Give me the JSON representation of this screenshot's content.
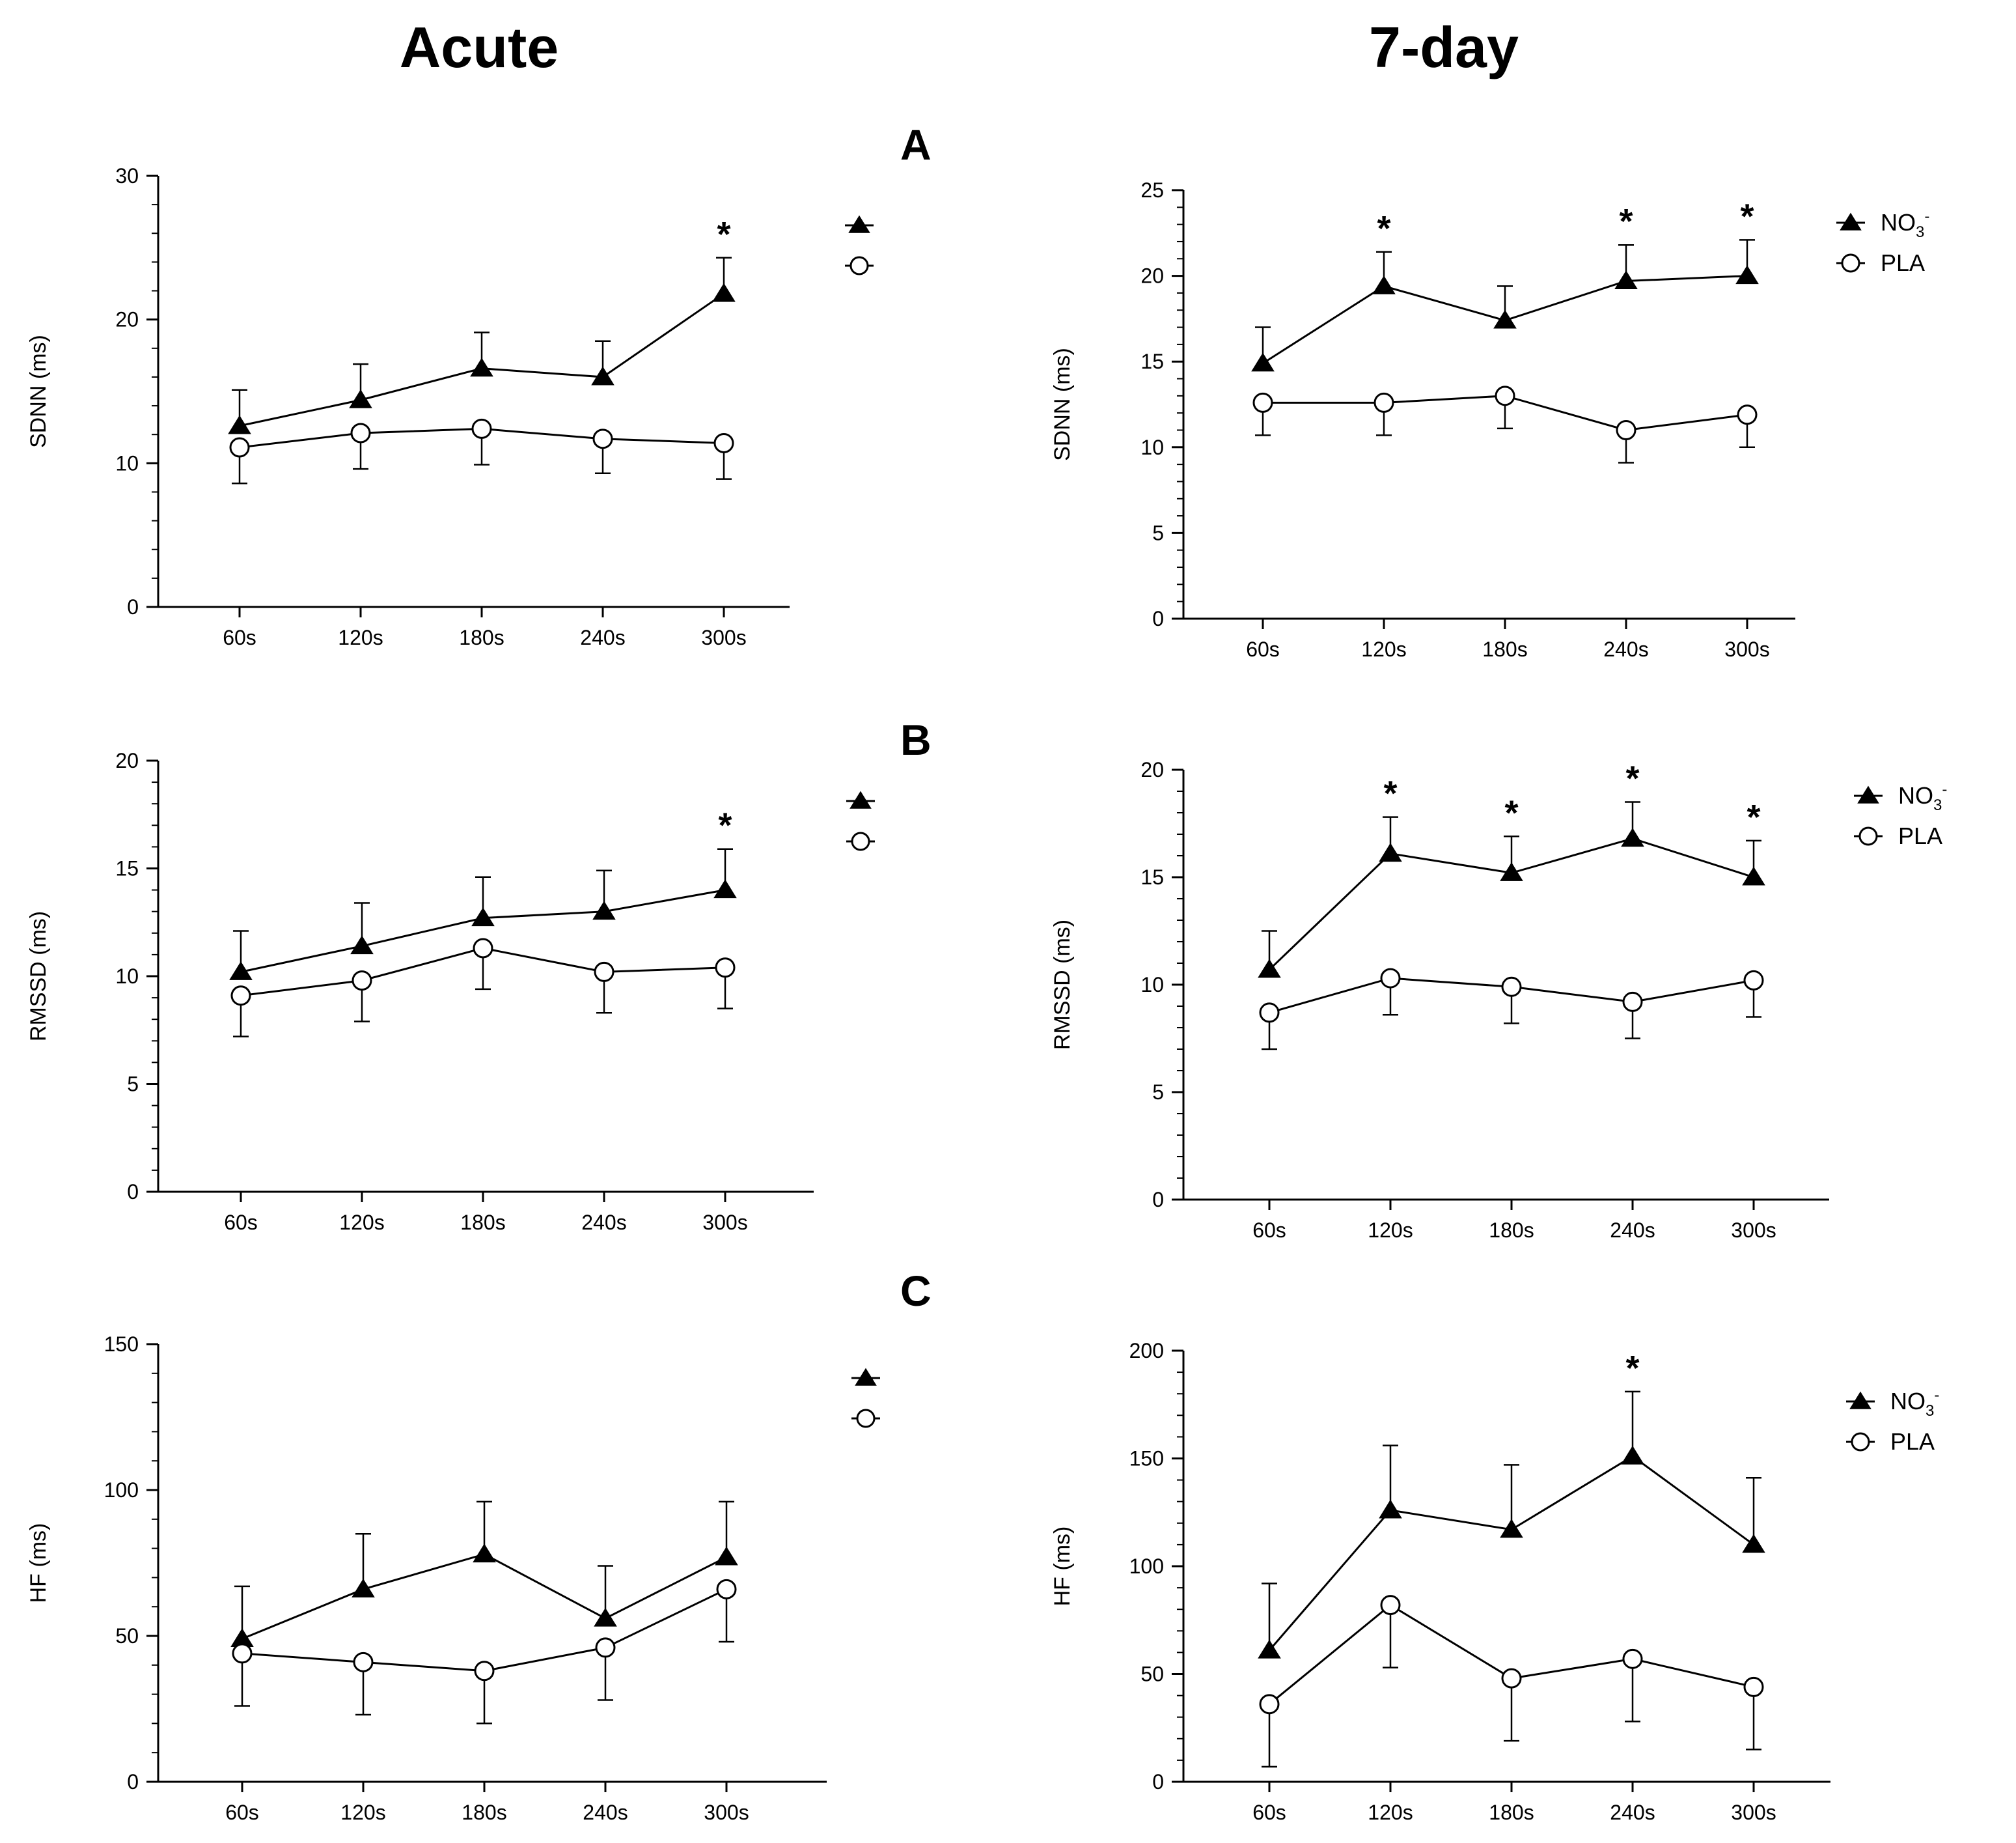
{
  "columns": {
    "left": "Acute",
    "right": "7-day"
  },
  "panels": [
    "A",
    "B",
    "C"
  ],
  "legend": {
    "no3_base": "NO",
    "no3_sub": "3",
    "no3_sup": "-",
    "pla": "PLA"
  },
  "star": "*",
  "chart_data": [
    {
      "id": "acute_sdnn",
      "type": "line",
      "title": "Acute",
      "panel": "A",
      "categories": [
        "60s",
        "120s",
        "180s",
        "240s",
        "300s"
      ],
      "ylabel": "SDNN (ms)",
      "ylim": [
        0,
        30
      ],
      "yticks": [
        0,
        10,
        20,
        30
      ],
      "series": [
        {
          "name": "NO3-",
          "marker": "filled-triangle",
          "values": [
            12.6,
            14.4,
            16.6,
            16.0,
            21.8
          ],
          "error": [
            2.5,
            2.5,
            2.5,
            2.5,
            2.5
          ]
        },
        {
          "name": "PLA",
          "marker": "open-circle",
          "values": [
            11.1,
            12.1,
            12.4,
            11.7,
            11.4
          ],
          "error": [
            2.5,
            2.5,
            2.5,
            2.4,
            2.5
          ]
        }
      ],
      "significant": [
        4
      ]
    },
    {
      "id": "day7_sdnn",
      "type": "line",
      "title": "7-day",
      "panel": "A",
      "categories": [
        "60s",
        "120s",
        "180s",
        "240s",
        "300s"
      ],
      "ylabel": "SDNN (ms)",
      "ylim": [
        0,
        25
      ],
      "yticks": [
        0,
        5,
        10,
        15,
        20,
        25
      ],
      "series": [
        {
          "name": "NO3-",
          "marker": "filled-triangle",
          "values": [
            14.9,
            19.4,
            17.4,
            19.7,
            20.0
          ],
          "error": [
            2.1,
            2.0,
            2.0,
            2.1,
            2.1
          ]
        },
        {
          "name": "PLA",
          "marker": "open-circle",
          "values": [
            12.6,
            12.6,
            13.0,
            11.0,
            11.9
          ],
          "error": [
            1.9,
            1.9,
            1.9,
            1.9,
            1.9
          ]
        }
      ],
      "significant": [
        1,
        3,
        4
      ]
    },
    {
      "id": "acute_rmssd",
      "type": "line",
      "title": "Acute",
      "panel": "B",
      "categories": [
        "60s",
        "120s",
        "180s",
        "240s",
        "300s"
      ],
      "ylabel": "RMSSD (ms)",
      "ylim": [
        0,
        20
      ],
      "yticks": [
        0,
        5,
        10,
        15,
        20
      ],
      "series": [
        {
          "name": "NO3-",
          "marker": "filled-triangle",
          "values": [
            10.2,
            11.4,
            12.7,
            13.0,
            14.0
          ],
          "error": [
            1.9,
            2.0,
            1.9,
            1.9,
            1.9
          ]
        },
        {
          "name": "PLA",
          "marker": "open-circle",
          "values": [
            9.1,
            9.8,
            11.3,
            10.2,
            10.4
          ],
          "error": [
            1.9,
            1.9,
            1.9,
            1.9,
            1.9
          ]
        }
      ],
      "significant": [
        4
      ]
    },
    {
      "id": "day7_rmssd",
      "type": "line",
      "title": "7-day",
      "panel": "B",
      "categories": [
        "60s",
        "120s",
        "180s",
        "240s",
        "300s"
      ],
      "ylabel": "RMSSD (ms)",
      "ylim": [
        0,
        20
      ],
      "yticks": [
        0,
        5,
        10,
        15,
        20
      ],
      "series": [
        {
          "name": "NO3-",
          "marker": "filled-triangle",
          "values": [
            10.7,
            16.1,
            15.2,
            16.8,
            15.0
          ],
          "error": [
            1.8,
            1.7,
            1.7,
            1.7,
            1.7
          ]
        },
        {
          "name": "PLA",
          "marker": "open-circle",
          "values": [
            8.7,
            10.3,
            9.9,
            9.2,
            10.2
          ],
          "error": [
            1.7,
            1.7,
            1.7,
            1.7,
            1.7
          ]
        }
      ],
      "significant": [
        1,
        2,
        3,
        4
      ]
    },
    {
      "id": "acute_hf",
      "type": "line",
      "title": "Acute",
      "panel": "C",
      "categories": [
        "60s",
        "120s",
        "180s",
        "240s",
        "300s"
      ],
      "ylabel": "HF (ms)",
      "ylim": [
        0,
        150
      ],
      "yticks": [
        0,
        50,
        100,
        150
      ],
      "series": [
        {
          "name": "NO3-",
          "marker": "filled-triangle",
          "values": [
            49,
            66,
            78,
            56,
            77
          ],
          "error": [
            18,
            19,
            18,
            18,
            19
          ]
        },
        {
          "name": "PLA",
          "marker": "open-circle",
          "values": [
            44,
            41,
            38,
            46,
            66
          ],
          "error": [
            18,
            18,
            18,
            18,
            18
          ]
        }
      ],
      "significant": []
    },
    {
      "id": "day7_hf",
      "type": "line",
      "title": "7-day",
      "panel": "C",
      "categories": [
        "60s",
        "120s",
        "180s",
        "240s",
        "300s"
      ],
      "ylabel": "HF (ms)",
      "ylim": [
        0,
        200
      ],
      "yticks": [
        0,
        50,
        100,
        150,
        200
      ],
      "series": [
        {
          "name": "NO3-",
          "marker": "filled-triangle",
          "values": [
            61,
            126,
            117,
            151,
            110
          ],
          "error": [
            31,
            30,
            30,
            30,
            31
          ]
        },
        {
          "name": "PLA",
          "marker": "open-circle",
          "values": [
            36,
            82,
            48,
            57,
            44
          ],
          "error": [
            29,
            29,
            29,
            29,
            29
          ]
        }
      ],
      "significant": [
        3
      ]
    }
  ]
}
